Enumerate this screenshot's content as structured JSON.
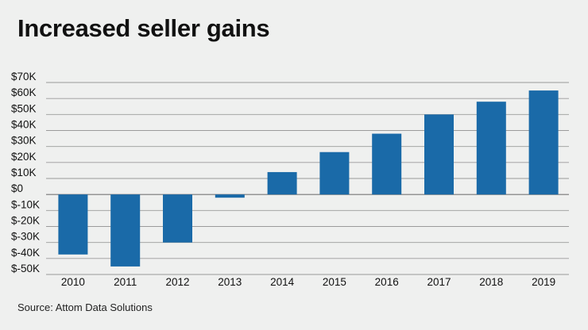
{
  "chart_data": {
    "type": "bar",
    "title": "Increased seller gains",
    "categories": [
      "2010",
      "2011",
      "2012",
      "2013",
      "2014",
      "2015",
      "2016",
      "2017",
      "2018",
      "2019"
    ],
    "values": [
      -37500,
      -45000,
      -30000,
      -2000,
      14000,
      26500,
      38000,
      50000,
      58000,
      65000
    ],
    "ylim": [
      -50000,
      70000
    ],
    "yticks": [
      70000,
      60000,
      50000,
      40000,
      30000,
      20000,
      10000,
      0,
      -10000,
      -20000,
      -30000,
      -40000,
      -50000
    ],
    "ytick_labels": [
      "$70K",
      "$60K",
      "$50K",
      "$40K",
      "$30K",
      "$20K",
      "$10K",
      "$0",
      "$-10K",
      "$-20K",
      "$-30K",
      "$-40K",
      "$-50K"
    ],
    "grid": true,
    "bar_color": "#1a6aa8",
    "xlabel": "",
    "ylabel": ""
  },
  "source": "Source: Attom Data Solutions"
}
